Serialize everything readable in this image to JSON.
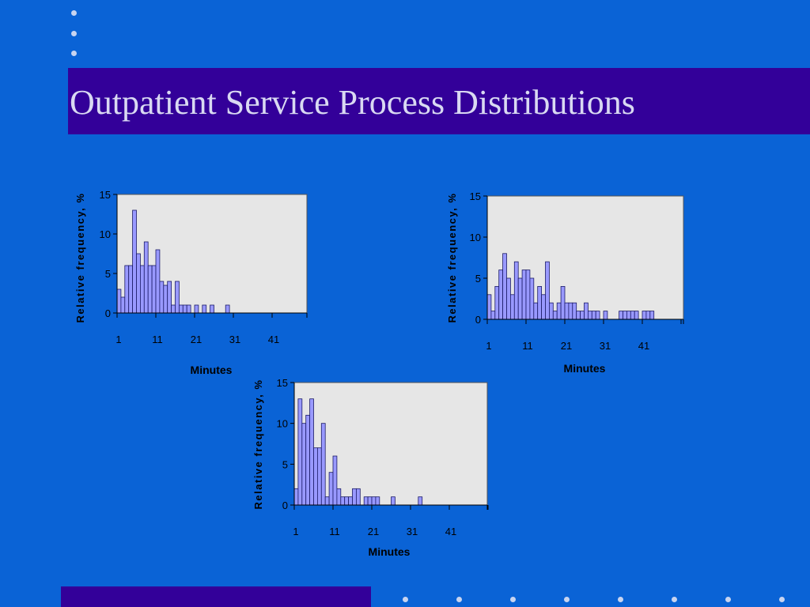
{
  "slide": {
    "title": "Outpatient Service Process Distributions",
    "colors": {
      "background": "#0a63d6",
      "title_bar": "#330099",
      "title_text": "#d9d9f2",
      "plot_area": "#e6e6e6",
      "bar_fill": "#9999ff",
      "bar_stroke": "#1a1a66"
    }
  },
  "chart_data": [
    {
      "type": "bar",
      "xlabel": "Minutes",
      "ylabel": "Relative frequency, %",
      "ylim": [
        0,
        15
      ],
      "yticks": [
        0,
        5,
        10,
        15
      ],
      "xticks": [
        1,
        11,
        21,
        31,
        41
      ],
      "grid": false,
      "legend": "none",
      "x": [
        1,
        2,
        3,
        4,
        5,
        6,
        7,
        8,
        9,
        10,
        11,
        12,
        13,
        14,
        15,
        16,
        17,
        18,
        19,
        20,
        21,
        22,
        23,
        24,
        25,
        26,
        27,
        28,
        29,
        30,
        31,
        32,
        33,
        34,
        35,
        36,
        37,
        38,
        39,
        40,
        41,
        42,
        43,
        44,
        45,
        46,
        47,
        48
      ],
      "values": [
        3,
        2,
        6,
        6,
        13,
        7.5,
        6,
        9,
        6,
        6,
        8,
        4,
        3.5,
        4,
        1,
        4,
        1,
        1,
        1,
        0,
        1,
        0,
        1,
        0,
        1,
        0,
        0,
        0,
        1,
        0,
        0,
        0,
        0,
        0,
        0,
        0,
        0,
        0,
        0,
        0,
        0,
        0,
        0,
        0,
        0,
        0,
        0,
        0
      ]
    },
    {
      "type": "bar",
      "xlabel": "Minutes",
      "ylabel": "Relative frequency, %",
      "ylim": [
        0,
        15
      ],
      "yticks": [
        0,
        5,
        10,
        15
      ],
      "xticks": [
        1,
        11,
        21,
        31,
        41
      ],
      "grid": false,
      "legend": "none",
      "x": [
        1,
        2,
        3,
        4,
        5,
        6,
        7,
        8,
        9,
        10,
        11,
        12,
        13,
        14,
        15,
        16,
        17,
        18,
        19,
        20,
        21,
        22,
        23,
        24,
        25,
        26,
        27,
        28,
        29,
        30,
        31,
        32,
        33,
        34,
        35,
        36,
        37,
        38,
        39,
        40,
        41,
        42,
        43,
        44,
        45,
        46,
        47,
        48,
        49,
        50
      ],
      "values": [
        3,
        1,
        4,
        6,
        8,
        5,
        3,
        7,
        5,
        6,
        6,
        5,
        2,
        4,
        3,
        7,
        2,
        1,
        2,
        4,
        2,
        2,
        2,
        1,
        1,
        2,
        1,
        1,
        1,
        0,
        1,
        0,
        0,
        0,
        1,
        1,
        1,
        1,
        1,
        0,
        1,
        1,
        1,
        0,
        0,
        0,
        0,
        0,
        0,
        0
      ]
    },
    {
      "type": "bar",
      "xlabel": "Minutes",
      "ylabel": "Relative frequency, %",
      "ylim": [
        0,
        15
      ],
      "yticks": [
        0,
        5,
        10,
        15
      ],
      "xticks": [
        1,
        11,
        21,
        31,
        41
      ],
      "grid": false,
      "legend": "none",
      "x": [
        1,
        2,
        3,
        4,
        5,
        6,
        7,
        8,
        9,
        10,
        11,
        12,
        13,
        14,
        15,
        16,
        17,
        18,
        19,
        20,
        21,
        22,
        23,
        24,
        25,
        26,
        27,
        28,
        29,
        30,
        31,
        32,
        33,
        34,
        35,
        36,
        37,
        38,
        39,
        40,
        41,
        42,
        43,
        44,
        45,
        46,
        47,
        48,
        49,
        50
      ],
      "values": [
        2,
        13,
        10,
        11,
        13,
        7,
        7,
        10,
        1,
        4,
        6,
        2,
        1,
        1,
        1,
        2,
        2,
        0,
        1,
        1,
        1,
        1,
        0,
        0,
        0,
        1,
        0,
        0,
        0,
        0,
        0,
        0,
        1,
        0,
        0,
        0,
        0,
        0,
        0,
        0,
        0,
        0,
        0,
        0,
        0,
        0,
        0,
        0,
        0,
        0
      ]
    }
  ]
}
